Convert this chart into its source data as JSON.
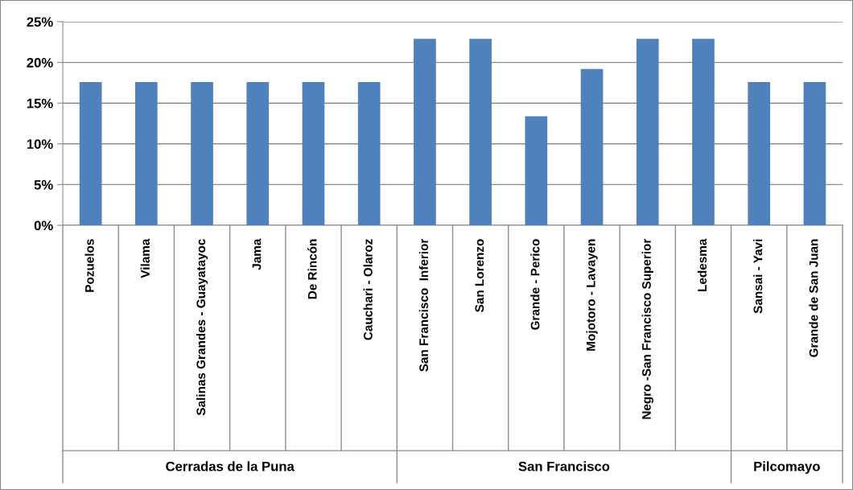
{
  "chart_data": {
    "type": "bar",
    "categories": [
      "Pozuelos",
      "Vilama",
      "Salinas Grandes - Guayatayoc",
      "Jama",
      "De Rincón",
      "Cauchari - Olaroz",
      "San Francisco  Inferior",
      "San Lorenzo",
      "Grande - Perico",
      "Mojotoro - Lavayen",
      "Negro -San Francisco Superior",
      "Ledesma",
      "Sansai - Yavi",
      "Grande de San Juan"
    ],
    "values": [
      17.6,
      17.6,
      17.6,
      17.6,
      17.6,
      17.6,
      22.9,
      22.9,
      13.4,
      19.2,
      22.9,
      22.9,
      17.6,
      17.6
    ],
    "color": "#4f81bd",
    "ylim": [
      0,
      25
    ],
    "yticks": [
      {
        "value": 0,
        "label": "0%"
      },
      {
        "value": 5,
        "label": "5%"
      },
      {
        "value": 10,
        "label": "10%"
      },
      {
        "value": 15,
        "label": "15%"
      },
      {
        "value": 20,
        "label": "20%"
      },
      {
        "value": 25,
        "label": "25%"
      }
    ],
    "grid": "y",
    "annotations": [
      "Cerradas de la Puna",
      "San Francisco",
      "Pilcomayo"
    ]
  }
}
